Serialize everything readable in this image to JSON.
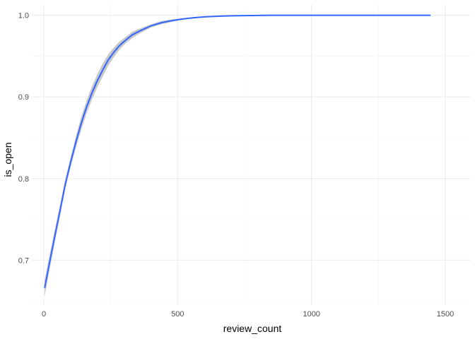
{
  "chart_data": {
    "type": "line",
    "xlabel": "review_count",
    "ylabel": "is_open",
    "xlim": [
      -45,
      1595
    ],
    "ylim": [
      0.645,
      1.0135
    ],
    "x_ticks": [
      0,
      500,
      1000,
      1500
    ],
    "x_tick_labels": [
      "0",
      "500",
      "1000",
      "1500"
    ],
    "y_ticks": [
      0.7,
      0.8,
      0.9,
      1.0
    ],
    "y_tick_labels": [
      "0.7",
      "0.8",
      "0.9",
      "1.0"
    ],
    "grid": true,
    "legend": "none",
    "colors": {
      "line": "#3366ff",
      "ribbon": "#c8c8c8",
      "grid": "#ebebeb"
    },
    "series": [
      {
        "x": [
          3,
          20,
          40,
          60,
          80,
          100,
          120,
          140,
          160,
          180,
          200,
          220,
          240,
          260,
          280,
          300,
          330,
          360,
          400,
          440,
          480,
          520,
          560,
          600,
          650,
          700,
          750,
          800,
          860,
          900,
          1000,
          1100,
          1200,
          1300,
          1400,
          1445
        ],
        "y": [
          0.666,
          0.695,
          0.728,
          0.76,
          0.793,
          0.82,
          0.845,
          0.868,
          0.888,
          0.905,
          0.92,
          0.933,
          0.945,
          0.954,
          0.962,
          0.968,
          0.976,
          0.981,
          0.987,
          0.991,
          0.9935,
          0.9955,
          0.997,
          0.998,
          0.9988,
          0.9993,
          0.9996,
          0.9998,
          1.0,
          1.0,
          1.0,
          1.0,
          1.0,
          1.0,
          1.0,
          1.0
        ],
        "y_low": [
          0.656,
          0.686,
          0.72,
          0.753,
          0.787,
          0.814,
          0.838,
          0.86,
          0.88,
          0.897,
          0.912,
          0.925,
          0.938,
          0.948,
          0.957,
          0.964,
          0.972,
          0.978,
          0.985,
          0.989,
          0.992,
          0.9945,
          0.9963,
          0.9975,
          0.9985,
          0.9991,
          0.9995,
          0.9997,
          0.9999,
          1.0,
          1.0,
          1.0,
          1.0,
          1.0,
          1.0,
          1.0
        ],
        "y_high": [
          0.676,
          0.704,
          0.736,
          0.767,
          0.799,
          0.826,
          0.852,
          0.876,
          0.896,
          0.913,
          0.928,
          0.941,
          0.952,
          0.96,
          0.967,
          0.972,
          0.98,
          0.984,
          0.989,
          0.993,
          0.995,
          0.9965,
          0.9977,
          0.9985,
          0.9991,
          0.9995,
          0.9997,
          0.9999,
          1.0,
          1.0,
          1.0,
          1.0,
          1.0,
          1.0,
          1.0,
          1.0
        ]
      }
    ]
  }
}
